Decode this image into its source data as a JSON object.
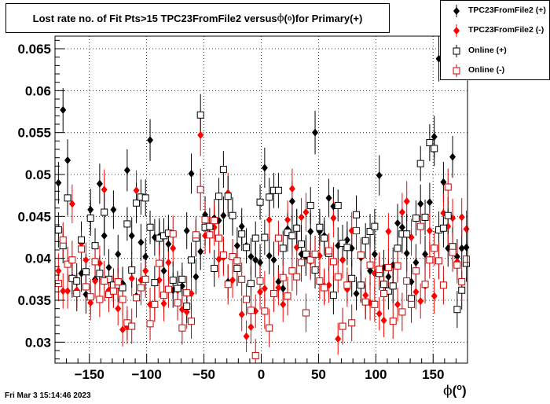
{
  "title": {
    "prefix": "Lost rate no. of Fit Pts>15 TPC23FromFile2 versus ",
    "phi": "ϕ",
    "deg": "o",
    "suffix": " for Primary(+)"
  },
  "xlabel": {
    "phi": "ϕ",
    "deg": "o"
  },
  "timestamp": "Fri Mar  3 15:14:46 2023",
  "legend": [
    {
      "label": "TPC23FromFile2 (+)",
      "color": "#000000",
      "marker": "filled-diamond"
    },
    {
      "label": "TPC23FromFile2 (-)",
      "color": "#ff0000",
      "marker": "filled-diamond"
    },
    {
      "label": "Online (+)",
      "color": "#000000",
      "marker": "open-square"
    },
    {
      "label": "Online (-)",
      "color": "#cc0000",
      "marker": "open-square"
    }
  ],
  "chart_data": {
    "type": "scatter",
    "xlim": [
      -180,
      180
    ],
    "ylim": [
      0.0275,
      0.0665
    ],
    "x_ticks": [
      -150,
      -100,
      -50,
      0,
      50,
      100,
      150
    ],
    "x_tick_labels": [
      "−150",
      "−100",
      "−50",
      "0",
      "50",
      "100",
      "150"
    ],
    "y_ticks": [
      0.03,
      0.035,
      0.04,
      0.045,
      0.05,
      0.055,
      0.06,
      0.065
    ],
    "y_tick_labels": [
      "0.03",
      "0.035",
      "0.04",
      "0.045",
      "0.05",
      "0.055",
      "0.06",
      "0.065"
    ],
    "grid": true,
    "legend_position": "top-right",
    "x": [
      -177,
      -173,
      -169,
      -165,
      -161,
      -157,
      -153,
      -149,
      -145,
      -141,
      -137,
      -133,
      -129,
      -125,
      -121,
      -117,
      -113,
      -109,
      -105,
      -101,
      -97,
      -93,
      -89,
      -85,
      -81,
      -77,
      -73,
      -69,
      -65,
      -61,
      -57,
      -53,
      -49,
      -45,
      -41,
      -37,
      -33,
      -29,
      -25,
      -21,
      -17,
      -13,
      -9,
      -5,
      -1,
      3,
      7,
      11,
      15,
      19,
      23,
      27,
      31,
      35,
      39,
      43,
      47,
      51,
      55,
      59,
      63,
      67,
      71,
      75,
      79,
      83,
      87,
      91,
      95,
      99,
      103,
      107,
      111,
      115,
      119,
      123,
      127,
      131,
      135,
      139,
      143,
      147,
      151,
      155,
      159,
      163,
      167,
      171,
      175,
      179
    ],
    "series": [
      {
        "name": "TPC23FromFile2 (+)",
        "color": "#000000",
        "marker": "filled-diamond",
        "values": [
          0.049,
          0.0577,
          0.0517,
          0.0377,
          0.0358,
          0.0382,
          0.0357,
          0.0458,
          0.0375,
          0.0489,
          0.0427,
          0.0389,
          0.0458,
          0.0405,
          0.037,
          0.0505,
          0.0427,
          0.0355,
          0.0419,
          0.0402,
          0.0541,
          0.0425,
          0.0426,
          0.0385,
          0.0417,
          0.0362,
          0.0363,
          0.0367,
          0.0433,
          0.0501,
          0.0378,
          0.0408,
          0.0452,
          0.0429,
          0.0448,
          0.0445,
          0.0451,
          0.0372,
          0.045,
          0.0415,
          0.0438,
          0.0415,
          0.0402,
          0.0398,
          0.0395,
          0.0508,
          0.0403,
          0.0398,
          0.0372,
          0.0364,
          0.0435,
          0.0468,
          0.0437,
          0.0405,
          0.0402,
          0.0432,
          0.055,
          0.0432,
          0.0427,
          0.0472,
          0.0462,
          0.0415,
          0.0398,
          0.0422,
          0.0412,
          0.0358,
          0.0401,
          0.0348,
          0.0385,
          0.0405,
          0.0499,
          0.0389,
          0.0378,
          0.0392,
          0.0442,
          0.0437,
          0.0406,
          0.0372,
          0.0395,
          0.0465,
          0.0405,
          0.0467,
          0.0545,
          0.0638,
          0.0491,
          0.0412,
          0.0521,
          0.0402,
          0.0412,
          0.0413
        ]
      },
      {
        "name": "TPC23FromFile2 (-)",
        "color": "#ff0000",
        "marker": "filled-diamond",
        "values": [
          0.0385,
          0.0361,
          0.0361,
          0.0465,
          0.0362,
          0.0418,
          0.0398,
          0.0347,
          0.0373,
          0.0394,
          0.0482,
          0.0362,
          0.0361,
          0.034,
          0.0315,
          0.0318,
          0.0376,
          0.0481,
          0.0374,
          0.0385,
          0.0345,
          0.0344,
          0.0374,
          0.0346,
          0.0395,
          0.0412,
          0.0362,
          0.0339,
          0.0336,
          0.0358,
          0.0425,
          0.0547,
          0.0427,
          0.0428,
          0.0437,
          0.0399,
          0.0401,
          0.0478,
          0.0374,
          0.0388,
          0.0333,
          0.0307,
          0.0318,
          0.0337,
          0.036,
          0.0364,
          0.0446,
          0.0357,
          0.0365,
          0.0345,
          0.0446,
          0.0483,
          0.0413,
          0.0449,
          0.0455,
          0.0396,
          0.0405,
          0.0403,
          0.0367,
          0.0368,
          0.0448,
          0.0304,
          0.0398,
          0.0363,
          0.0433,
          0.0452,
          0.0369,
          0.0356,
          0.0347,
          0.0382,
          0.0334,
          0.0326,
          0.0432,
          0.0368,
          0.0345,
          0.0455,
          0.0468,
          0.0425,
          0.036,
          0.0349,
          0.0367,
          0.0433,
          0.0355,
          0.0397,
          0.0454,
          0.0438,
          0.0448,
          0.0396,
          0.0449,
          0.0435
        ]
      },
      {
        "name": "Online (+)",
        "color": "#000000",
        "marker": "open-square",
        "values": [
          0.0434,
          0.0415,
          0.0472,
          0.0376,
          0.0373,
          0.0422,
          0.0384,
          0.0448,
          0.0415,
          0.0382,
          0.0455,
          0.0375,
          0.0368,
          0.0368,
          0.0365,
          0.0441,
          0.0386,
          0.0466,
          0.0473,
          0.0472,
          0.0437,
          0.0371,
          0.0424,
          0.0427,
          0.043,
          0.0374,
          0.0364,
          0.0375,
          0.0343,
          0.0398,
          0.0424,
          0.0571,
          0.0437,
          0.0438,
          0.0388,
          0.0474,
          0.0506,
          0.0474,
          0.0451,
          0.0388,
          0.0429,
          0.0413,
          0.037,
          0.0424,
          0.0467,
          0.0425,
          0.0473,
          0.0481,
          0.0481,
          0.0412,
          0.0431,
          0.0427,
          0.0436,
          0.0417,
          0.0405,
          0.0463,
          0.0386,
          0.0437,
          0.0424,
          0.0406,
          0.0356,
          0.0463,
          0.0418,
          0.0413,
          0.0376,
          0.0452,
          0.0368,
          0.0421,
          0.0432,
          0.0438,
          0.0382,
          0.0369,
          0.0361,
          0.0367,
          0.0412,
          0.0429,
          0.0429,
          0.0352,
          0.0448,
          0.0513,
          0.0449,
          0.0538,
          0.0531,
          0.0434,
          0.0436,
          0.0451,
          0.0414,
          0.0339,
          0.0362,
          0.0394
        ]
      },
      {
        "name": "Online (-)",
        "color": "#cc0000",
        "marker": "open-square",
        "values": [
          0.037,
          0.0422,
          0.0393,
          0.0398,
          0.0358,
          0.0411,
          0.0366,
          0.0354,
          0.0396,
          0.0351,
          0.0373,
          0.0357,
          0.0361,
          0.0372,
          0.0351,
          0.0323,
          0.0319,
          0.0353,
          0.0365,
          0.0375,
          0.0322,
          0.0345,
          0.0394,
          0.0356,
          0.0363,
          0.0429,
          0.0347,
          0.0317,
          0.0359,
          0.0325,
          0.0428,
          0.0482,
          0.0446,
          0.0428,
          0.0445,
          0.0424,
          0.0404,
          0.0369,
          0.0402,
          0.0397,
          0.0375,
          0.0351,
          0.0338,
          0.0284,
          0.0373,
          0.0337,
          0.0317,
          0.0358,
          0.0424,
          0.0377,
          0.0355,
          0.0385,
          0.0378,
          0.0395,
          0.0335,
          0.0398,
          0.0405,
          0.0373,
          0.0365,
          0.0409,
          0.0396,
          0.0378,
          0.0319,
          0.0368,
          0.0323,
          0.0433,
          0.0404,
          0.0348,
          0.0392,
          0.0345,
          0.0387,
          0.0358,
          0.0389,
          0.0325,
          0.0391,
          0.0336,
          0.0373,
          0.0345,
          0.0385,
          0.0438,
          0.0369,
          0.0398,
          0.0412,
          0.0397,
          0.0368,
          0.0485,
          0.0407,
          0.0392,
          0.0372,
          0.0399
        ]
      }
    ],
    "errors": [
      [
        0.0025,
        0.0026,
        0.0025,
        0.002,
        0.0021,
        0.0022,
        0.0023,
        0.0025,
        0.0022,
        0.0024,
        0.0024,
        0.0022,
        0.0023,
        0.0023,
        0.002,
        0.0025,
        0.0022,
        0.0021,
        0.0022,
        0.0022,
        0.0025,
        0.0022,
        0.0022,
        0.0021,
        0.0022,
        0.0021,
        0.002,
        0.0021,
        0.0022,
        0.0024,
        0.0021,
        0.0022,
        0.0022,
        0.0022,
        0.0023,
        0.0022,
        0.0023,
        0.002,
        0.0023,
        0.0022,
        0.0022,
        0.0021,
        0.0022,
        0.0021,
        0.0022,
        0.0024,
        0.0022,
        0.0022,
        0.002,
        0.0021,
        0.0023,
        0.0024,
        0.0022,
        0.0022,
        0.0023,
        0.0022,
        0.0026,
        0.0022,
        0.0022,
        0.0023,
        0.0023,
        0.0022,
        0.0022,
        0.0022,
        0.0022,
        0.002,
        0.0022,
        0.002,
        0.0022,
        0.0022,
        0.0024,
        0.0021,
        0.0021,
        0.0021,
        0.0023,
        0.0022,
        0.0022,
        0.0021,
        0.0022,
        0.0023,
        0.0022,
        0.0023,
        0.0025,
        0.0027,
        0.0024,
        0.0022,
        0.0025,
        0.0021,
        0.0022,
        0.0022
      ],
      [
        0.0021,
        0.0021,
        0.0021,
        0.0023,
        0.0021,
        0.0022,
        0.0021,
        0.0021,
        0.0021,
        0.0021,
        0.0024,
        0.0021,
        0.002,
        0.002,
        0.002,
        0.002,
        0.0021,
        0.0024,
        0.0021,
        0.0022,
        0.002,
        0.002,
        0.0021,
        0.0021,
        0.0022,
        0.0022,
        0.0021,
        0.002,
        0.002,
        0.0021,
        0.0022,
        0.0025,
        0.0022,
        0.0022,
        0.0022,
        0.0022,
        0.0022,
        0.0024,
        0.0021,
        0.0021,
        0.002,
        0.0019,
        0.002,
        0.002,
        0.0021,
        0.0021,
        0.0023,
        0.0021,
        0.0021,
        0.0021,
        0.0023,
        0.0024,
        0.0022,
        0.0023,
        0.0023,
        0.0022,
        0.0022,
        0.0022,
        0.0021,
        0.0021,
        0.0023,
        0.0019,
        0.0022,
        0.0021,
        0.0022,
        0.0023,
        0.0021,
        0.0021,
        0.0021,
        0.0021,
        0.002,
        0.002,
        0.0022,
        0.0021,
        0.002,
        0.0023,
        0.0024,
        0.0022,
        0.0021,
        0.0021,
        0.0021,
        0.0022,
        0.0021,
        0.0022,
        0.0023,
        0.0022,
        0.0023,
        0.0022,
        0.0023,
        0.0022
      ]
    ]
  }
}
